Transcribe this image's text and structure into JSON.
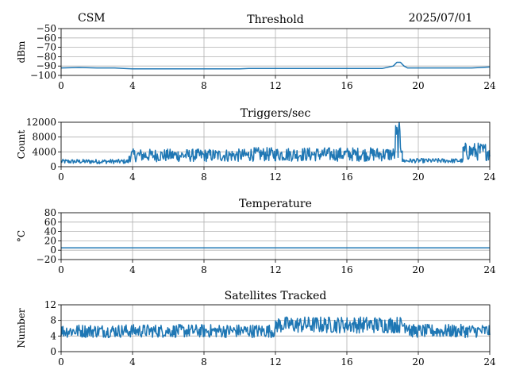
{
  "header": {
    "left": "CSM",
    "date": "2025/07/01"
  },
  "chart_data": [
    {
      "type": "line",
      "title": "Threshold",
      "ylabel": "dBm",
      "xlabel": "",
      "xlim": [
        0,
        24
      ],
      "ylim": [
        -100,
        -50
      ],
      "xticks": [
        "0",
        "4",
        "8",
        "12",
        "16",
        "20",
        "24"
      ],
      "yticks": [
        "−50",
        "−60",
        "−70",
        "−80",
        "−90",
        "−100"
      ],
      "grid": true,
      "series": [
        {
          "x": [
            0,
            1,
            2,
            3,
            3.5,
            4,
            6,
            8,
            10,
            10.5,
            12,
            14,
            16,
            18,
            18.6,
            18.8,
            19.0,
            19.2,
            19.4,
            20,
            22,
            23,
            23.5,
            24
          ],
          "values": [
            -92,
            -91.5,
            -92,
            -92,
            -92.5,
            -93,
            -93,
            -93,
            -93,
            -92.5,
            -92.5,
            -92.5,
            -92.5,
            -92.5,
            -90,
            -86,
            -86,
            -90,
            -92,
            -92,
            -92,
            -92,
            -91.5,
            -91
          ]
        }
      ]
    },
    {
      "type": "line",
      "title": "Triggers/sec",
      "ylabel": "Count",
      "xlabel": "",
      "xlim": [
        0,
        24
      ],
      "ylim": [
        0,
        12000
      ],
      "xticks": [
        "0",
        "4",
        "8",
        "12",
        "16",
        "20",
        "24"
      ],
      "yticks": [
        "12000",
        "8000",
        "4000",
        "0"
      ],
      "grid": true,
      "segments": [
        {
          "x_start": 0,
          "x_end": 3.8,
          "low": 600,
          "high": 2000
        },
        {
          "x_start": 3.8,
          "x_end": 10.5,
          "low": 700,
          "high": 4800
        },
        {
          "x_start": 10.5,
          "x_end": 18.7,
          "low": 800,
          "high": 5200
        },
        {
          "x_start": 18.7,
          "x_end": 19.1,
          "low": 600,
          "high": 12000
        },
        {
          "x_start": 19.1,
          "x_end": 22.5,
          "low": 800,
          "high": 2200
        },
        {
          "x_start": 22.5,
          "x_end": 24,
          "low": 800,
          "high": 6500
        }
      ]
    },
    {
      "type": "line",
      "title": "Temperature",
      "ylabel": "°C",
      "xlabel": "",
      "xlim": [
        0,
        24
      ],
      "ylim": [
        -20,
        80
      ],
      "xticks": [
        "0",
        "4",
        "8",
        "12",
        "16",
        "20",
        "24"
      ],
      "yticks": [
        "80",
        "60",
        "40",
        "20",
        "0",
        "−20"
      ],
      "grid": true,
      "series": [
        {
          "x": [
            0,
            24
          ],
          "values": [
            5,
            5
          ]
        }
      ]
    },
    {
      "type": "line",
      "title": "Satellites Tracked",
      "ylabel": "Number",
      "xlabel": "",
      "xlim": [
        0,
        24
      ],
      "ylim": [
        0,
        12
      ],
      "xticks": [
        "0",
        "4",
        "8",
        "12",
        "16",
        "20",
        "24"
      ],
      "yticks": [
        "12",
        "8",
        "4",
        "0"
      ],
      "grid": true,
      "segments": [
        {
          "x_start": 0,
          "x_end": 8,
          "low": 3,
          "high": 7
        },
        {
          "x_start": 8,
          "x_end": 12,
          "low": 3,
          "high": 7
        },
        {
          "x_start": 12,
          "x_end": 19.5,
          "low": 4,
          "high": 9
        },
        {
          "x_start": 19.5,
          "x_end": 24,
          "low": 3,
          "high": 7
        }
      ]
    }
  ],
  "colors": {
    "series": "#1f77b4",
    "grid": "#b0b0b0"
  }
}
